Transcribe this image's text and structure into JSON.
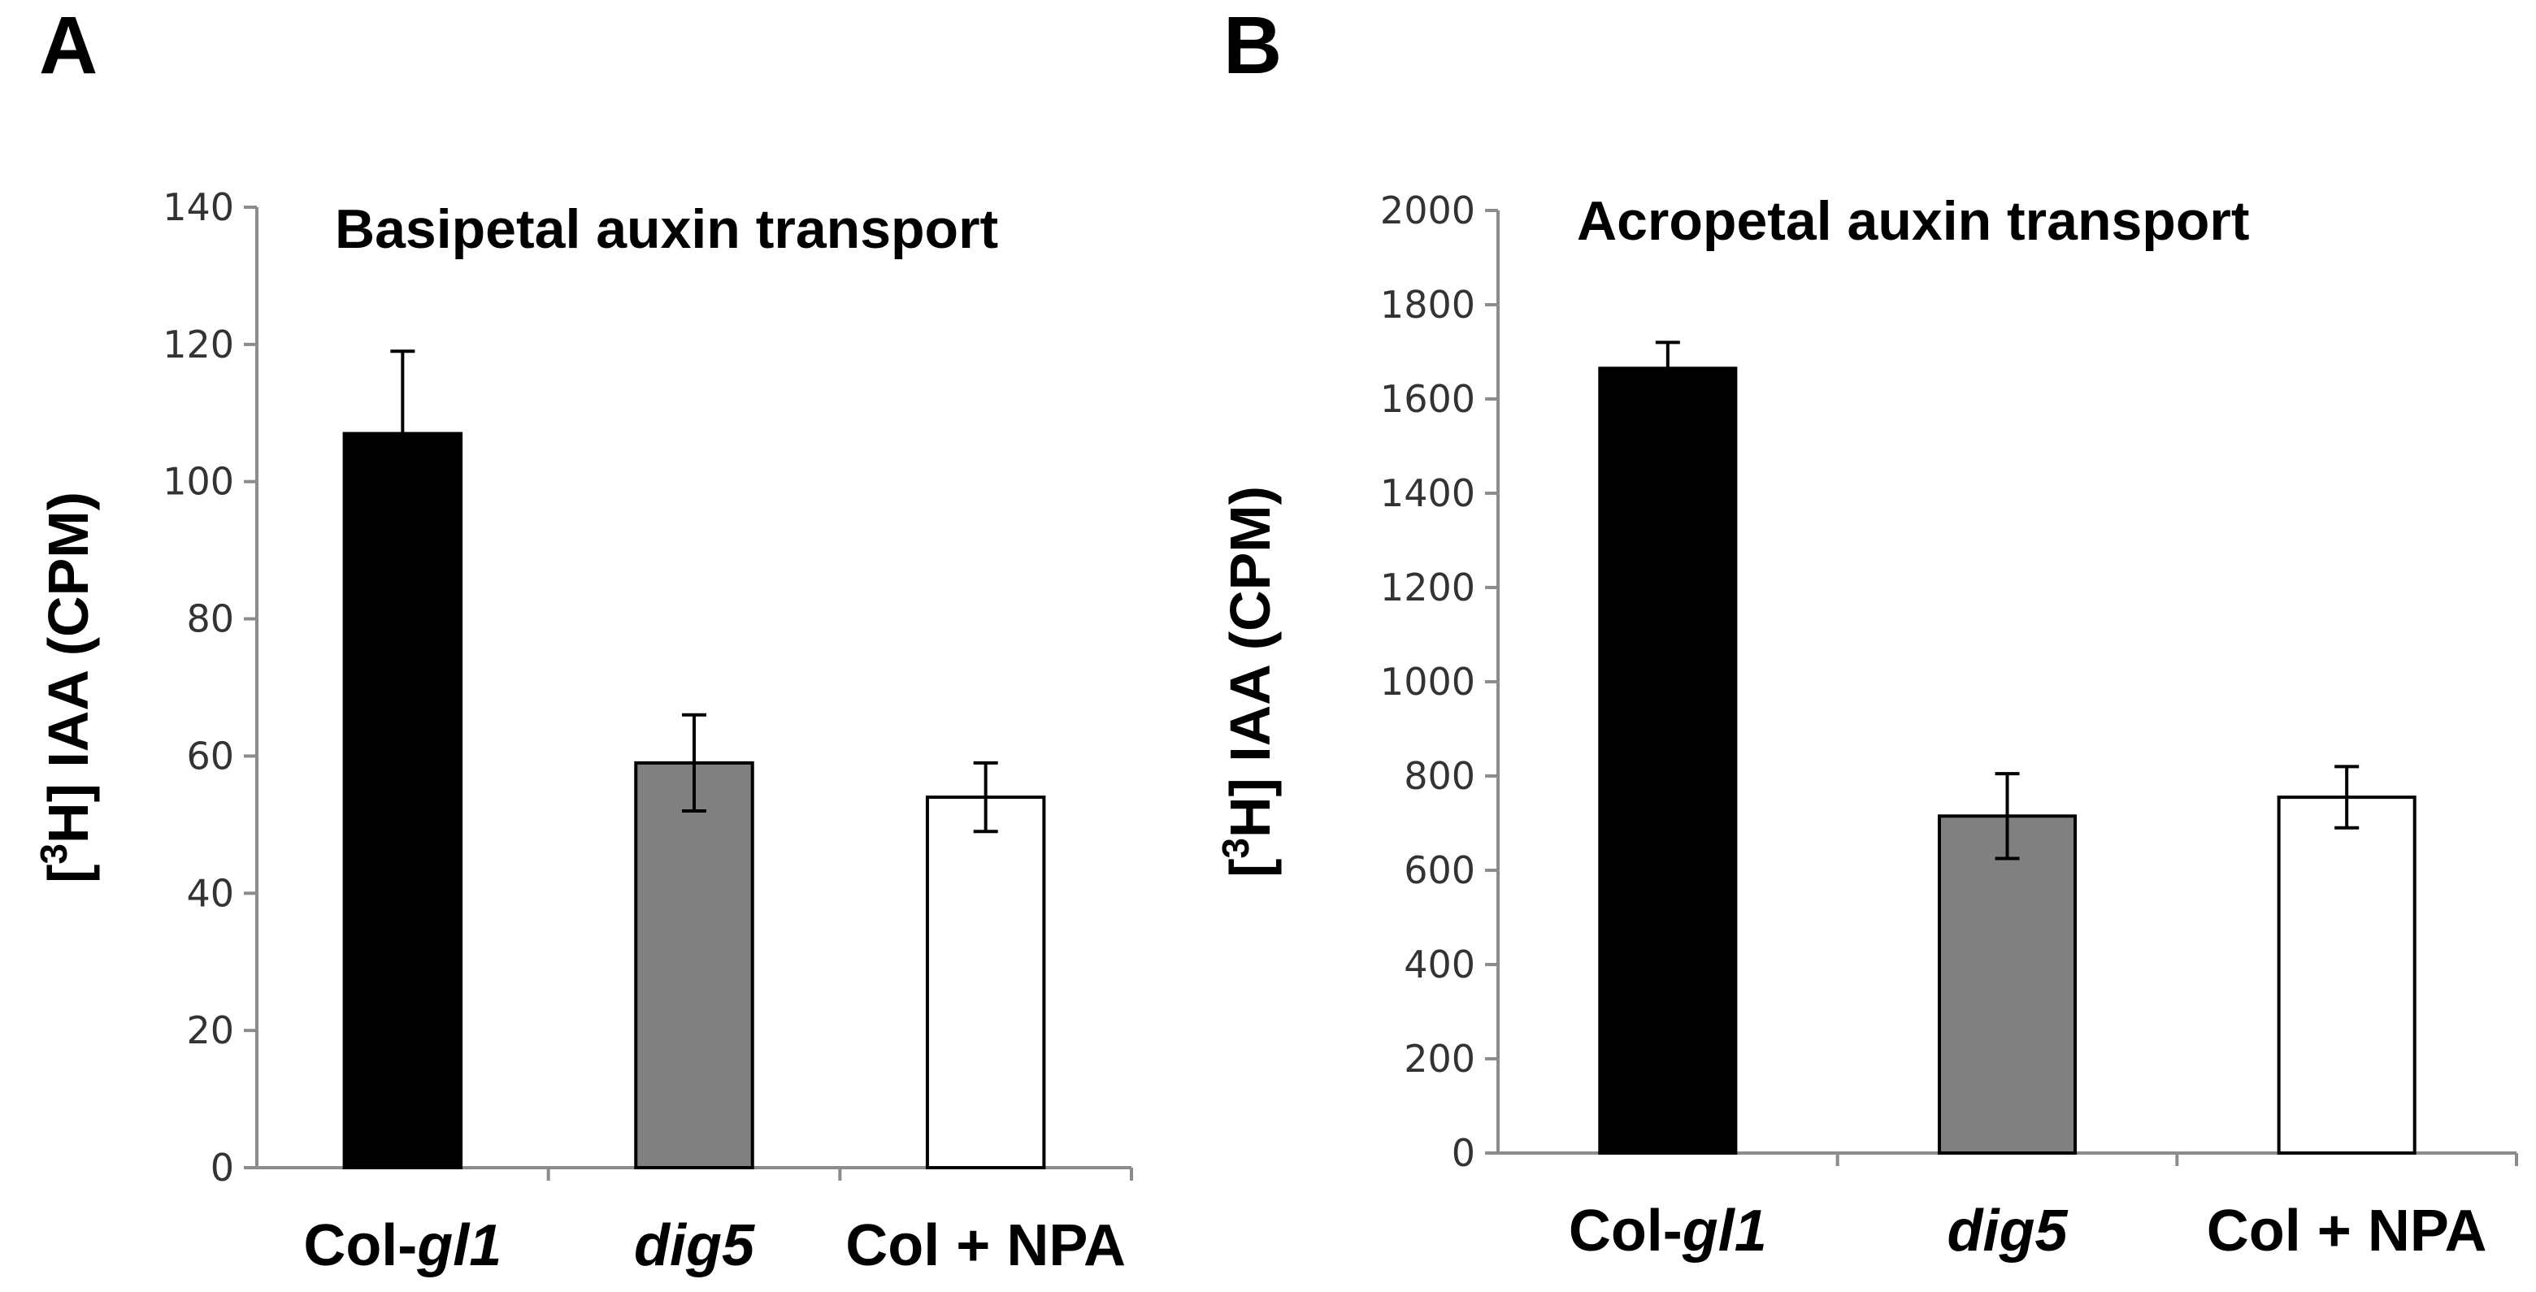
{
  "chart_data": [
    {
      "panel": "A",
      "type": "bar",
      "title": "Basipetal auxin transport",
      "ylabel_parts": [
        "[",
        "3",
        "H] IAA (CPM)"
      ],
      "ylim": [
        0,
        140
      ],
      "yticks": [
        0,
        20,
        40,
        60,
        80,
        100,
        120,
        140
      ],
      "categories": [
        {
          "pre": "Col-",
          "it": "gl1"
        },
        {
          "pre": "",
          "it": "dig5"
        },
        {
          "pre": "Col + NPA",
          "it": ""
        }
      ],
      "values": [
        107,
        59,
        54
      ],
      "errors": [
        12,
        7,
        5
      ],
      "colors": [
        "#000000",
        "#808080",
        "#ffffff"
      ]
    },
    {
      "panel": "B",
      "type": "bar",
      "title": "Acropetal auxin transport",
      "ylabel_parts": [
        "[",
        "3",
        "H] IAA (CPM)"
      ],
      "ylim": [
        0,
        2000
      ],
      "yticks": [
        0,
        200,
        400,
        600,
        800,
        1000,
        1200,
        1400,
        1600,
        1800,
        2000
      ],
      "categories": [
        {
          "pre": "Col-",
          "it": "gl1"
        },
        {
          "pre": "",
          "it": "dig5"
        },
        {
          "pre": "Col + NPA",
          "it": ""
        }
      ],
      "values": [
        1665,
        715,
        755
      ],
      "errors": [
        55,
        90,
        65
      ],
      "colors": [
        "#000000",
        "#808080",
        "#ffffff"
      ]
    }
  ]
}
